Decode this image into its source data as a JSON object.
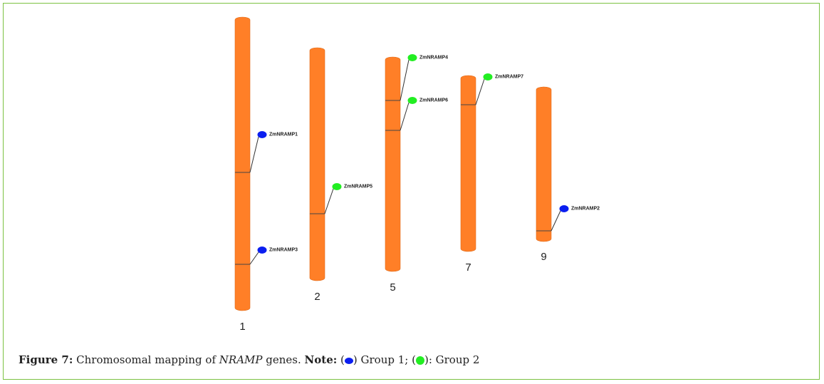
{
  "caption": {
    "figure_label": "Figure 7:",
    "text_before": "Chromosomal mapping of",
    "gene_family": "NRAMP",
    "text_after": "genes.",
    "note_label": "Note:",
    "group1_label": "Group 1;",
    "group2_label": ": Group 2"
  },
  "colors": {
    "chromosome": "#ff7f27",
    "chromosome_edge": "#e06a18",
    "group1": "#0a1ef0",
    "group2": "#22ee22",
    "frame_border": "#7cc242"
  },
  "chromosomes": [
    {
      "id": "1",
      "label": "1"
    },
    {
      "id": "2",
      "label": "2"
    },
    {
      "id": "5",
      "label": "5"
    },
    {
      "id": "7",
      "label": "7"
    },
    {
      "id": "9",
      "label": "9"
    }
  ],
  "genes": [
    {
      "name": "ZmNRAMP1",
      "chromosome": "1",
      "group": 1
    },
    {
      "name": "ZmNRAMP3",
      "chromosome": "1",
      "group": 1
    },
    {
      "name": "ZmNRAMP5",
      "chromosome": "2",
      "group": 2
    },
    {
      "name": "ZmNRAMP4",
      "chromosome": "5",
      "group": 2
    },
    {
      "name": "ZmNRAMP6",
      "chromosome": "5",
      "group": 2
    },
    {
      "name": "ZmNRAMP7",
      "chromosome": "7",
      "group": 2
    },
    {
      "name": "ZmNRAMP2",
      "chromosome": "9",
      "group": 1
    }
  ]
}
